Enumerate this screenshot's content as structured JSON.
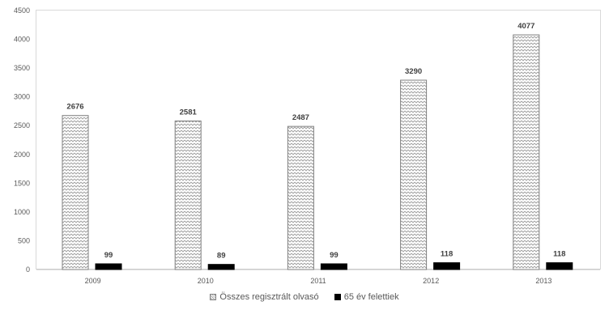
{
  "chart_data": {
    "type": "bar",
    "categories": [
      "2009",
      "2010",
      "2011",
      "2012",
      "2013"
    ],
    "series": [
      {
        "name": "Összes regisztrált olvasó",
        "values": [
          2676,
          2581,
          2487,
          3290,
          4077
        ],
        "color": "#a6a6a6",
        "pattern": "zigzag-hatch"
      },
      {
        "name": "65 év felettiek",
        "values": [
          99,
          89,
          99,
          118,
          118
        ],
        "color": "#000000",
        "pattern": "solid"
      }
    ],
    "ylim": [
      0,
      4500
    ],
    "yticks": [
      "0",
      "500",
      "1000",
      "1500",
      "2000",
      "2500",
      "3000",
      "3500",
      "4000",
      "4500"
    ],
    "grid": false,
    "legend_position": "bottom",
    "data_labels": true
  }
}
